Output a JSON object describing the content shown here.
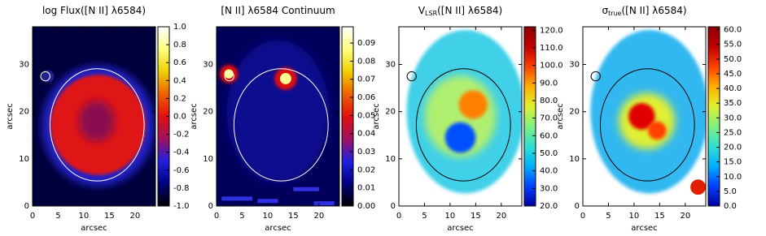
{
  "chart_data": [
    {
      "type": "image",
      "title": [
        {
          "text": "log Flux([N II] λ6584)"
        }
      ],
      "xlabel": "arcsec",
      "ylabel": "arcsec",
      "xlim": [
        0,
        24
      ],
      "xticks": [
        0,
        5,
        10,
        15,
        20
      ],
      "ylim": [
        0,
        38
      ],
      "yticks": [
        0,
        10,
        20,
        30
      ],
      "clim": [
        -1,
        1
      ],
      "cticks": [
        {
          "value": -1,
          "label": "-1.0"
        },
        {
          "value": -0.8,
          "label": "-0.8"
        },
        {
          "value": -0.6,
          "label": "-0.6"
        },
        {
          "value": -0.4,
          "label": "-0.4"
        },
        {
          "value": -0.2,
          "label": "-0.2"
        },
        {
          "value": 0,
          "label": "0.0"
        },
        {
          "value": 0.2,
          "label": "0.2"
        },
        {
          "value": 0.4,
          "label": "0.4"
        },
        {
          "value": 0.6,
          "label": "0.6"
        },
        {
          "value": 0.8,
          "label": "0.8"
        },
        {
          "value": 1,
          "label": "1.0"
        }
      ],
      "colormap": [
        "#000000",
        "#000080",
        "#2020e0",
        "#a01060",
        "#e01010",
        "#f06000",
        "#f0d000",
        "#ffff80",
        "#ffffff"
      ]
    },
    {
      "type": "image",
      "title": [
        {
          "text": "[N II] λ6584 Continuum"
        }
      ],
      "xlabel": "arcsec",
      "ylabel": "arcsec",
      "xlim": [
        0,
        24
      ],
      "xticks": [
        0,
        5,
        10,
        15,
        20
      ],
      "ylim": [
        0,
        38
      ],
      "yticks": [
        0,
        10,
        20,
        30
      ],
      "clim": [
        0,
        0.099
      ],
      "cticks": [
        {
          "value": 0,
          "label": "0.00"
        },
        {
          "value": 0.01,
          "label": "0.01"
        },
        {
          "value": 0.02,
          "label": "0.02"
        },
        {
          "value": 0.03,
          "label": "0.03"
        },
        {
          "value": 0.04,
          "label": "0.04"
        },
        {
          "value": 0.05,
          "label": "0.05"
        },
        {
          "value": 0.06,
          "label": "0.06"
        },
        {
          "value": 0.07,
          "label": "0.07"
        },
        {
          "value": 0.08,
          "label": "0.08"
        },
        {
          "value": 0.09,
          "label": "0.09"
        }
      ],
      "colormap": [
        "#000000",
        "#000080",
        "#2020e0",
        "#a01060",
        "#e01010",
        "#f06000",
        "#f0d000",
        "#ffff80",
        "#ffffff"
      ]
    },
    {
      "type": "image",
      "title": [
        {
          "text": "V"
        },
        {
          "text": "LSR",
          "sub": true
        },
        {
          "text": "([N II] λ6584)"
        }
      ],
      "xlabel": "arcsec",
      "ylabel": "arcsec",
      "xlim": [
        0,
        24
      ],
      "xticks": [
        0,
        5,
        10,
        15,
        20
      ],
      "ylim": [
        0,
        38
      ],
      "yticks": [
        0,
        10,
        20,
        30
      ],
      "clim": [
        20,
        122
      ],
      "cticks": [
        {
          "value": 20,
          "label": "20.0"
        },
        {
          "value": 30,
          "label": "30.0"
        },
        {
          "value": 40,
          "label": "40.0"
        },
        {
          "value": 50,
          "label": "50.0"
        },
        {
          "value": 60,
          "label": "60.0"
        },
        {
          "value": 70,
          "label": "70.0"
        },
        {
          "value": 80,
          "label": "80.0"
        },
        {
          "value": 90,
          "label": "90.0"
        },
        {
          "value": 100,
          "label": "100.0"
        },
        {
          "value": 110,
          "label": "110.0"
        },
        {
          "value": 120,
          "label": "120.0"
        }
      ],
      "colormap": [
        "#0000a0",
        "#0040ff",
        "#00b0ff",
        "#30e0d0",
        "#80f080",
        "#e0f030",
        "#ffb000",
        "#ff4000",
        "#c00000",
        "#900000"
      ]
    },
    {
      "type": "image",
      "title": [
        {
          "text": "σ"
        },
        {
          "text": "true",
          "sub": true
        },
        {
          "text": "([N II] λ6584)"
        }
      ],
      "xlabel": "arcsec",
      "ylabel": "arcsec",
      "xlim": [
        0,
        24
      ],
      "xticks": [
        0,
        5,
        10,
        15,
        20
      ],
      "ylim": [
        0,
        38
      ],
      "yticks": [
        0,
        10,
        20,
        30
      ],
      "clim": [
        0,
        61
      ],
      "cticks": [
        {
          "value": 0,
          "label": "0.0"
        },
        {
          "value": 5,
          "label": "5.0"
        },
        {
          "value": 10,
          "label": "10.0"
        },
        {
          "value": 15,
          "label": "15.0"
        },
        {
          "value": 20,
          "label": "20.0"
        },
        {
          "value": 25,
          "label": "25.0"
        },
        {
          "value": 30,
          "label": "30.0"
        },
        {
          "value": 35,
          "label": "35.0"
        },
        {
          "value": 40,
          "label": "40.0"
        },
        {
          "value": 45,
          "label": "45.0"
        },
        {
          "value": 50,
          "label": "50.0"
        },
        {
          "value": 55,
          "label": "55.0"
        },
        {
          "value": 60,
          "label": "60.0"
        }
      ],
      "colormap": [
        "#0000a0",
        "#0040ff",
        "#00b0ff",
        "#30e0d0",
        "#80f080",
        "#e0f030",
        "#ffb000",
        "#ff4000",
        "#c00000",
        "#900000"
      ]
    }
  ]
}
